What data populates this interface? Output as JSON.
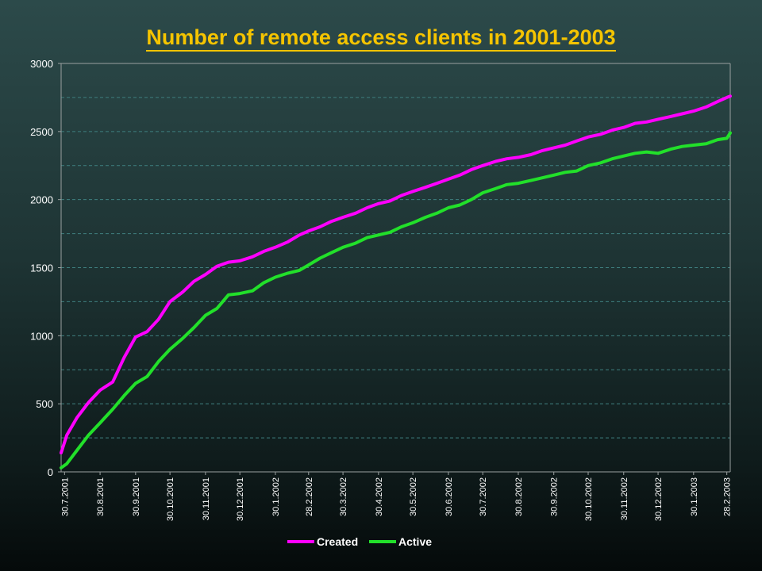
{
  "chart_data": {
    "type": "line",
    "title": "Number of remote access clients in 2001-2003",
    "xlabel": "",
    "ylabel": "",
    "ylim": [
      0,
      3000
    ],
    "yticks": [
      0,
      500,
      1000,
      1500,
      2000,
      2500,
      3000
    ],
    "grid": true,
    "legend_position": "bottom",
    "xtick_labels": [
      "30.7.2001",
      "30.8.2001",
      "30.9.2001",
      "30.10.2001",
      "30.11.2001",
      "30.12.2001",
      "30.1.2002",
      "28.2.2002",
      "30.3.2002",
      "30.4.2002",
      "30.5.2002",
      "30.6.2002",
      "30.7.2002",
      "30.8.2002",
      "30.9.2002",
      "30.10.2002",
      "30.11.2002",
      "30.12.2002",
      "30.1.2003",
      "28.2.2003"
    ],
    "x": [
      "2001-07-27",
      "2001-08-01",
      "2001-08-10",
      "2001-08-20",
      "2001-08-30",
      "2001-09-10",
      "2001-09-20",
      "2001-09-30",
      "2001-10-10",
      "2001-10-20",
      "2001-10-30",
      "2001-11-10",
      "2001-11-20",
      "2001-11-30",
      "2001-12-10",
      "2001-12-20",
      "2001-12-30",
      "2002-01-10",
      "2002-01-20",
      "2002-01-30",
      "2002-02-10",
      "2002-02-20",
      "2002-02-28",
      "2002-03-10",
      "2002-03-20",
      "2002-03-30",
      "2002-04-10",
      "2002-04-20",
      "2002-04-30",
      "2002-05-10",
      "2002-05-20",
      "2002-05-30",
      "2002-06-10",
      "2002-06-20",
      "2002-06-30",
      "2002-07-10",
      "2002-07-20",
      "2002-07-30",
      "2002-08-10",
      "2002-08-20",
      "2002-08-30",
      "2002-09-10",
      "2002-09-20",
      "2002-09-30",
      "2002-10-10",
      "2002-10-20",
      "2002-10-30",
      "2002-11-10",
      "2002-11-20",
      "2002-11-30",
      "2002-12-10",
      "2002-12-20",
      "2002-12-30",
      "2003-01-10",
      "2003-01-20",
      "2003-01-30",
      "2003-02-10",
      "2003-02-20",
      "2003-02-28",
      "2003-03-03"
    ],
    "series": [
      {
        "name": "Created",
        "color": "#ff00ff",
        "values": [
          140,
          270,
          400,
          510,
          600,
          660,
          840,
          990,
          1030,
          1120,
          1250,
          1320,
          1400,
          1450,
          1510,
          1540,
          1550,
          1580,
          1620,
          1650,
          1690,
          1740,
          1770,
          1800,
          1840,
          1870,
          1900,
          1940,
          1970,
          1990,
          2030,
          2060,
          2090,
          2120,
          2150,
          2180,
          2220,
          2250,
          2280,
          2300,
          2310,
          2330,
          2360,
          2380,
          2400,
          2430,
          2460,
          2480,
          2510,
          2530,
          2560,
          2570,
          2590,
          2610,
          2630,
          2650,
          2680,
          2720,
          2750,
          2760
        ]
      },
      {
        "name": "Active",
        "color": "#22e02a",
        "values": [
          30,
          60,
          160,
          270,
          360,
          460,
          560,
          650,
          700,
          810,
          900,
          980,
          1060,
          1150,
          1200,
          1300,
          1310,
          1330,
          1390,
          1430,
          1460,
          1480,
          1520,
          1570,
          1610,
          1650,
          1680,
          1720,
          1740,
          1760,
          1800,
          1830,
          1870,
          1900,
          1940,
          1960,
          2000,
          2050,
          2080,
          2110,
          2120,
          2140,
          2160,
          2180,
          2200,
          2210,
          2250,
          2270,
          2300,
          2320,
          2340,
          2350,
          2340,
          2370,
          2390,
          2400,
          2410,
          2440,
          2450,
          2490
        ]
      }
    ]
  }
}
